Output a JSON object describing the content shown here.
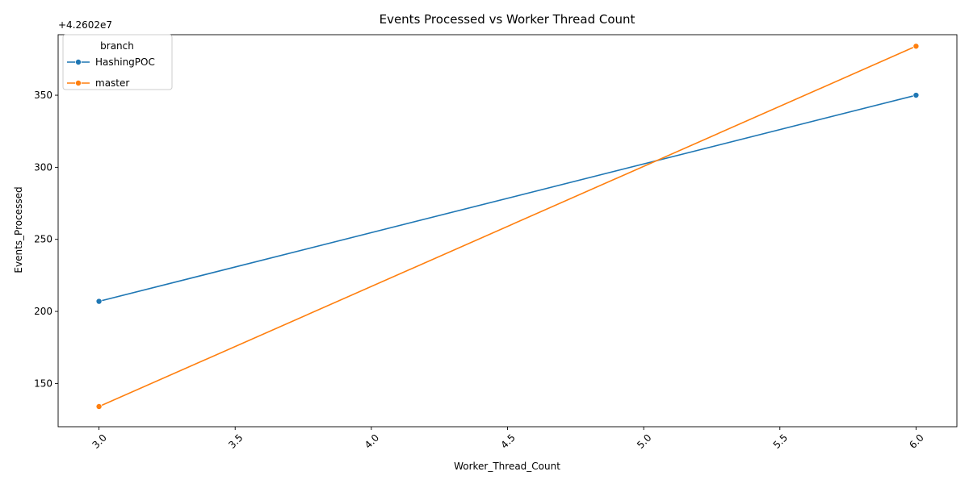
{
  "chart_data": {
    "type": "line",
    "title": "Events Processed vs Worker Thread Count",
    "xlabel": "Worker_Thread_Count",
    "ylabel": "Events_Processed",
    "offset_label": "+4.2602e7",
    "xlim": [
      2.85,
      6.15
    ],
    "ylim": [
      120,
      392
    ],
    "x_ticks": [
      3.0,
      3.5,
      4.0,
      4.5,
      5.0,
      5.5,
      6.0
    ],
    "x_tick_labels": [
      "3.0",
      "3.5",
      "4.0",
      "4.5",
      "5.0",
      "5.5",
      "6.0"
    ],
    "y_ticks": [
      150,
      200,
      250,
      300,
      350
    ],
    "y_tick_labels": [
      "150",
      "200",
      "250",
      "300",
      "350"
    ],
    "legend": {
      "title": "branch",
      "placement": "top-left"
    },
    "series": [
      {
        "name": "HashingPOC",
        "color": "#1f77b4",
        "x": [
          3,
          6
        ],
        "y": [
          207,
          350
        ]
      },
      {
        "name": "master",
        "color": "#ff7f0e",
        "x": [
          3,
          6
        ],
        "y": [
          134,
          384
        ]
      }
    ]
  }
}
